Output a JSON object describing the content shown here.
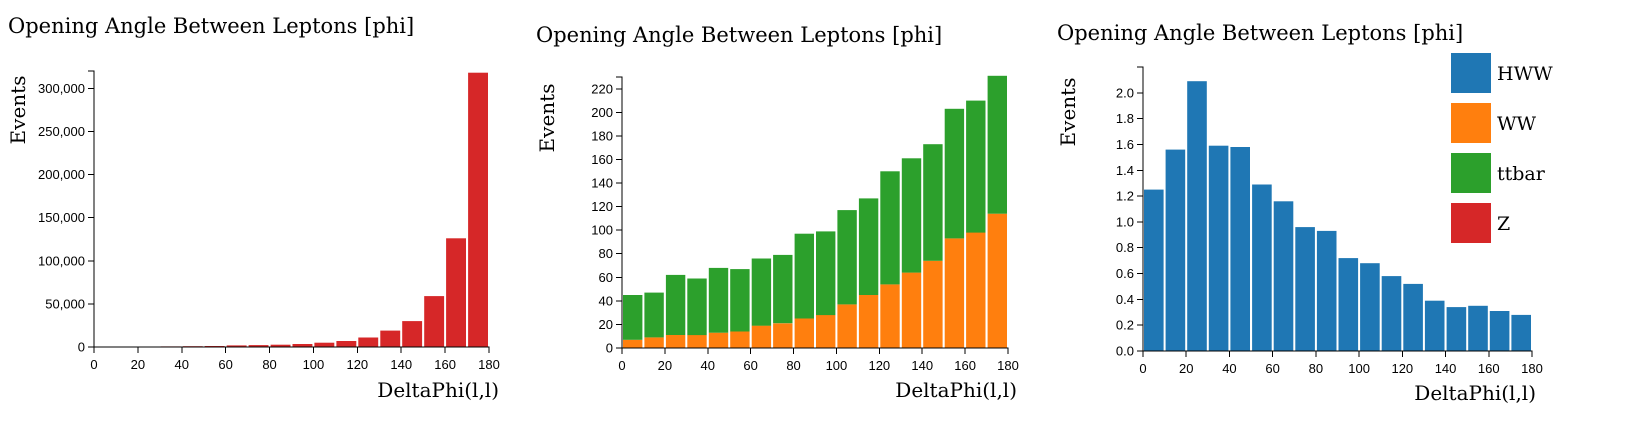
{
  "colors": {
    "HWW": "#1f77b4",
    "WW": "#ff7f0e",
    "ttbar": "#2ca02c",
    "Z": "#d62728"
  },
  "legend": [
    {
      "name": "HWW",
      "color": "#1f77b4"
    },
    {
      "name": "WW",
      "color": "#ff7f0e"
    },
    {
      "name": "ttbar",
      "color": "#2ca02c"
    },
    {
      "name": "Z",
      "color": "#d62728"
    }
  ],
  "chart_data": [
    {
      "type": "bar",
      "title": "Opening Angle Between Leptons [phi]",
      "xlabel": "DeltaPhi(l,l)",
      "ylabel": "Events",
      "xlim": [
        0,
        180
      ],
      "ylim": [
        0,
        320000
      ],
      "xticks": [
        0,
        20,
        40,
        60,
        80,
        100,
        120,
        140,
        160,
        180
      ],
      "yticks": [
        0,
        50000,
        100000,
        150000,
        200000,
        250000,
        300000
      ],
      "ytick_labels": [
        "0",
        "50,000",
        "100,000",
        "150,000",
        "200,000",
        "250,000",
        "300,000"
      ],
      "bin_edges": [
        0,
        10,
        20,
        30,
        40,
        50,
        60,
        70,
        80,
        90,
        100,
        110,
        120,
        130,
        140,
        150,
        160,
        170,
        180
      ],
      "series": [
        {
          "name": "Z",
          "color": "#d62728",
          "values": [
            400,
            500,
            600,
            700,
            900,
            1200,
            1800,
            2200,
            2700,
            3500,
            5000,
            7000,
            11000,
            19000,
            30000,
            59000,
            126000,
            318000
          ]
        }
      ]
    },
    {
      "type": "bar",
      "stacked": true,
      "title": "Opening Angle Between Leptons [phi]",
      "xlabel": "DeltaPhi(l,l)",
      "ylabel": "Events",
      "xlim": [
        0,
        180
      ],
      "ylim": [
        0,
        230
      ],
      "xticks": [
        0,
        20,
        40,
        60,
        80,
        100,
        120,
        140,
        160,
        180
      ],
      "yticks": [
        0,
        20,
        40,
        60,
        80,
        100,
        120,
        140,
        160,
        180,
        200,
        220
      ],
      "bin_edges": [
        0,
        10,
        20,
        30,
        40,
        50,
        60,
        70,
        80,
        90,
        100,
        110,
        120,
        130,
        140,
        150,
        160,
        170,
        180
      ],
      "series": [
        {
          "name": "WW",
          "color": "#ff7f0e",
          "values": [
            7,
            9,
            11,
            11,
            13,
            14,
            19,
            21,
            25,
            28,
            37,
            45,
            54,
            64,
            74,
            93,
            98,
            114
          ]
        },
        {
          "name": "ttbar",
          "color": "#2ca02c",
          "values": [
            38,
            38,
            51,
            48,
            55,
            53,
            57,
            58,
            72,
            71,
            80,
            82,
            96,
            97,
            99,
            110,
            112,
            117
          ]
        }
      ]
    },
    {
      "type": "bar",
      "title": "Opening Angle Between Leptons [phi]",
      "xlabel": "DeltaPhi(l,l)",
      "ylabel": "Events",
      "xlim": [
        0,
        180
      ],
      "ylim": [
        0,
        2.2
      ],
      "xticks": [
        0,
        20,
        40,
        60,
        80,
        100,
        120,
        140,
        160,
        180
      ],
      "yticks": [
        0,
        0.2,
        0.4,
        0.6,
        0.8,
        1.0,
        1.2,
        1.4,
        1.6,
        1.8,
        2.0
      ],
      "ytick_labels": [
        "0.0",
        "0.2",
        "0.4",
        "0.6",
        "0.8",
        "1.0",
        "1.2",
        "1.4",
        "1.6",
        "1.8",
        "2.0"
      ],
      "bin_edges": [
        0,
        10,
        20,
        30,
        40,
        50,
        60,
        70,
        80,
        90,
        100,
        110,
        120,
        130,
        140,
        150,
        160,
        170,
        180
      ],
      "series": [
        {
          "name": "HWW",
          "color": "#1f77b4",
          "values": [
            1.25,
            1.56,
            2.09,
            1.59,
            1.58,
            1.29,
            1.16,
            0.96,
            0.93,
            0.72,
            0.68,
            0.58,
            0.52,
            0.39,
            0.34,
            0.35,
            0.31,
            0.28
          ]
        }
      ]
    }
  ]
}
